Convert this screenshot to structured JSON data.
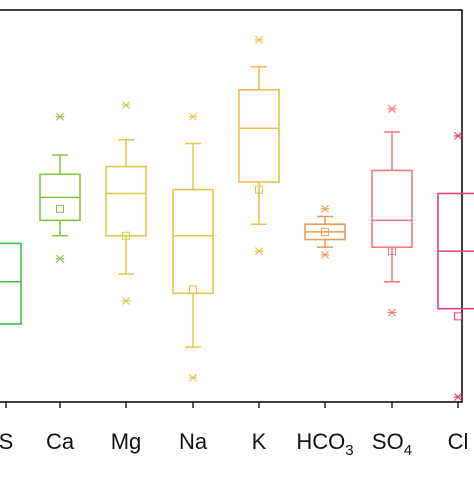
{
  "chart_data": {
    "type": "box",
    "title": "",
    "xlabel": "",
    "ylabel": "",
    "ylim": [
      0,
      100
    ],
    "grid": false,
    "legend": "none",
    "categories": [
      {
        "name": "S",
        "sub": "",
        "color": "#36C24A",
        "q1": 60,
        "median": 70,
        "q3": 81,
        "whisker_low": null,
        "whisker_high": null,
        "mean": null,
        "outliers": []
      },
      {
        "name": "Ca",
        "sub": "",
        "color": "#86C340",
        "q1": 42,
        "median": 48,
        "q3": 54,
        "whisker_low": 37,
        "whisker_high": 58,
        "mean": 51,
        "outliers": [
          27,
          64
        ]
      },
      {
        "name": "Mg",
        "sub": "",
        "color": "#D8CB4A",
        "q1": 40,
        "median": 47,
        "q3": 58,
        "whisker_low": 33,
        "whisker_high": 68,
        "mean": 58,
        "outliers": [
          24,
          75
        ]
      },
      {
        "name": "Na",
        "sub": "",
        "color": "#E4C64E",
        "q1": 46,
        "median": 58,
        "q3": 73,
        "whisker_low": 34,
        "whisker_high": 87,
        "mean": 72,
        "outliers": [
          27,
          95
        ]
      },
      {
        "name": "K",
        "sub": "",
        "color": "#EBBE4E",
        "q1": 20,
        "median": 30,
        "q3": 44,
        "whisker_low": 14,
        "whisker_high": 55,
        "mean": 46,
        "outliers": [
          7,
          62
        ]
      },
      {
        "name": "HCO",
        "sub": "3",
        "color": "#F29A55",
        "q1": 55,
        "median": 57,
        "q3": 59,
        "whisker_low": 53,
        "whisker_high": 61,
        "mean": 57,
        "outliers": [
          51,
          63
        ]
      },
      {
        "name": "SO",
        "sub": "4",
        "color": "#F07A7A",
        "q1": 41,
        "median": 54,
        "q3": 61,
        "whisker_low": 31,
        "whisker_high": 70,
        "mean": 62,
        "outliers": [
          25,
          78
        ]
      },
      {
        "name": "Cl",
        "sub": "",
        "color": "#E63E6D",
        "q1": 47,
        "median": 62,
        "q3": 77,
        "whisker_low": null,
        "whisker_high": null,
        "mean": 79,
        "outliers": [
          32,
          100
        ]
      }
    ]
  }
}
